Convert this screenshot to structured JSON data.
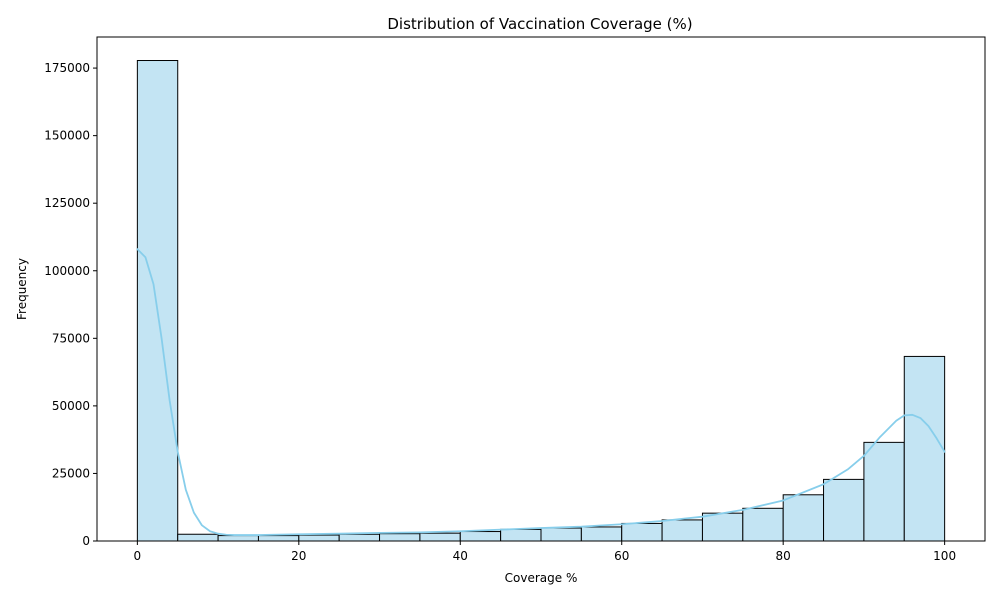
{
  "chart_data": {
    "type": "bar",
    "title": "Distribution of Vaccination Coverage (%)",
    "xlabel": "Coverage %",
    "ylabel": "Frequency",
    "xlim": [
      -5,
      105
    ],
    "ylim": [
      0,
      186500
    ],
    "x_ticks": [
      0,
      20,
      40,
      60,
      80,
      100
    ],
    "y_ticks": [
      0,
      25000,
      50000,
      75000,
      100000,
      125000,
      150000,
      175000
    ],
    "bins": [
      {
        "start": 0,
        "end": 5,
        "value": 177800
      },
      {
        "start": 5,
        "end": 10,
        "value": 2500
      },
      {
        "start": 10,
        "end": 15,
        "value": 2000
      },
      {
        "start": 15,
        "end": 20,
        "value": 2000
      },
      {
        "start": 20,
        "end": 25,
        "value": 2200
      },
      {
        "start": 25,
        "end": 30,
        "value": 2500
      },
      {
        "start": 30,
        "end": 35,
        "value": 2700
      },
      {
        "start": 35,
        "end": 40,
        "value": 2900
      },
      {
        "start": 40,
        "end": 45,
        "value": 3500
      },
      {
        "start": 45,
        "end": 50,
        "value": 4300
      },
      {
        "start": 50,
        "end": 55,
        "value": 4800
      },
      {
        "start": 55,
        "end": 60,
        "value": 5200
      },
      {
        "start": 60,
        "end": 65,
        "value": 6500
      },
      {
        "start": 65,
        "end": 70,
        "value": 7800
      },
      {
        "start": 70,
        "end": 75,
        "value": 10300
      },
      {
        "start": 75,
        "end": 80,
        "value": 12100
      },
      {
        "start": 80,
        "end": 85,
        "value": 17100
      },
      {
        "start": 85,
        "end": 90,
        "value": 22800
      },
      {
        "start": 90,
        "end": 95,
        "value": 36500
      },
      {
        "start": 95,
        "end": 100,
        "value": 68300
      }
    ],
    "kde": {
      "name": "KDE",
      "x": [
        0,
        1,
        2,
        3,
        4,
        5,
        6,
        7,
        8,
        9,
        10,
        11,
        12,
        13,
        15,
        20,
        25,
        30,
        35,
        40,
        45,
        50,
        55,
        60,
        65,
        70,
        75,
        80,
        85,
        88,
        90,
        92,
        94,
        95,
        96,
        97,
        98,
        99,
        100
      ],
      "y": [
        108000,
        105000,
        95000,
        75000,
        52000,
        33000,
        19000,
        10500,
        5800,
        3600,
        2700,
        2300,
        2200,
        2200,
        2200,
        2500,
        2700,
        3000,
        3200,
        3600,
        4200,
        4800,
        5300,
        6200,
        7400,
        9000,
        11500,
        15000,
        21000,
        26500,
        31500,
        38500,
        44500,
        46500,
        46700,
        45500,
        42500,
        38000,
        33000
      ]
    },
    "colors": {
      "bar_fill": "#c3e4f3",
      "bar_edge": "#000000",
      "kde_line": "#87ceeb"
    }
  }
}
